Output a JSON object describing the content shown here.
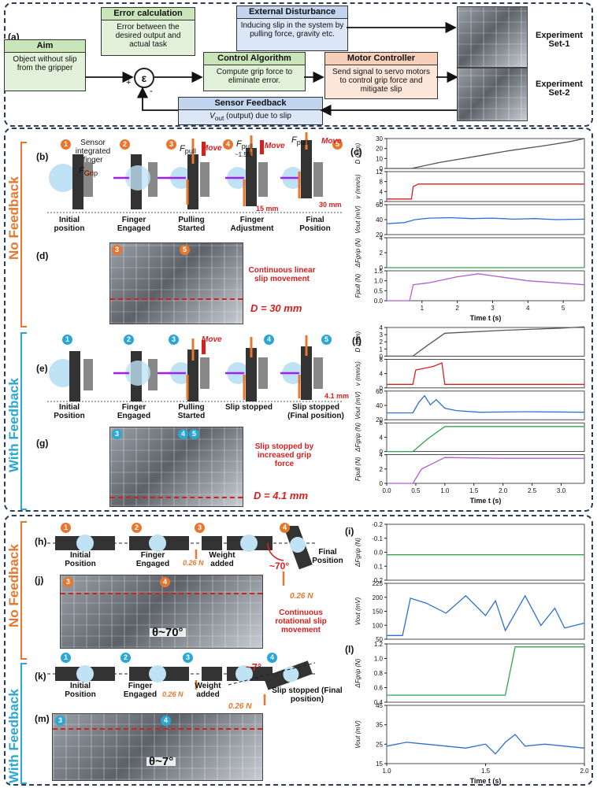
{
  "panel_labels": {
    "a": "(a)",
    "b": "(b)",
    "c": "(c)",
    "d": "(d)",
    "e": "(e)",
    "f": "(f)",
    "g": "(g)",
    "h": "(h)",
    "i": "(i)",
    "j": "(j)",
    "k": "(k)",
    "l": "(l)",
    "m": "(m)"
  },
  "block": {
    "aim_title": "Aim",
    "aim_text": "Object without slip from the gripper",
    "err_title": "Error calculation",
    "err_text": "Error between the desired output and actual task",
    "ctrl_title": "Control Algorithm",
    "ctrl_text": "Compute grip force to eliminate error.",
    "dist_title": "External Disturbance",
    "dist_text": "Inducing slip in the system by pulling force, gravity etc.",
    "motor_title": "Motor Controller",
    "motor_text": "Send signal to servo motors to control grip force and mitigate slip",
    "sensor_title": "Sensor Feedback",
    "sensor_text": "V",
    "sensor_sub": "out",
    "sensor_rest": " (output) due to slip",
    "epsilon": "ε",
    "plus": "+",
    "minus": "-",
    "exp1": "Experiment Set-1",
    "exp2": "Experiment Set-2"
  },
  "sides": {
    "no_feedback": "No Feedback",
    "with_feedback": "With Feedback"
  },
  "b": {
    "sensor_note": "Sensor integrated finger",
    "captions": [
      "Initial position",
      "Finger Engaged",
      "Pulling Started",
      "Finger Adjustment",
      "Final Position"
    ],
    "fgrip": "F",
    "fgrip_sub": "Grip",
    "fpull": "F",
    "fpull_sub": "pull",
    "fpull_note": "~1.5N",
    "move": "Move",
    "f": "f",
    "d15": "15 mm",
    "d30": "30 mm"
  },
  "d": {
    "note": "Continuous linear slip movement",
    "D": "D = 30 mm"
  },
  "e": {
    "captions": [
      "Initial Position",
      "Finger Engaged",
      "Pulling Started",
      "Slip stopped",
      "Slip stopped (Final position)"
    ],
    "d41": "4.1 mm"
  },
  "g": {
    "note": "Slip stopped by increased grip force",
    "D": "D = 4.1 mm"
  },
  "h": {
    "captions": [
      "Initial Position",
      "Finger Engaged",
      "Weight added",
      "Final Position"
    ],
    "weight": "0.26 N",
    "angle": "~70°"
  },
  "j": {
    "theta": "θ~70°",
    "note": "Continuous rotational slip movement"
  },
  "k": {
    "captions": [
      "Initial Position",
      "Finger Engaged",
      "Weight added",
      "Slip stopped (Final position)"
    ],
    "weight": "0.26 N",
    "angle": "~7°"
  },
  "m": {
    "theta": "θ~7°"
  },
  "colors": {
    "orange": "#e8772e",
    "blue": "#2aa7d6",
    "red": "#d61f1f",
    "green": "#2ea84a",
    "purple": "#b05fd8",
    "vblue": "#2d6fd2",
    "navy": "#2b3d5a"
  },
  "chart_data": [
    {
      "panel": "c",
      "type": "line",
      "xlabel": "Time t (s)",
      "xlim": [
        0,
        5.6
      ],
      "xticks": [
        "1",
        "2",
        "3",
        "4",
        "5"
      ],
      "subplots": [
        {
          "ylabel": "D (mm)",
          "ylim": [
            0,
            30
          ],
          "yticks": [
            "0",
            "10",
            "20",
            "30"
          ],
          "color": "#555555",
          "x": [
            0,
            0.7,
            1.5,
            2.5,
            3.5,
            4.5,
            5.2,
            5.6
          ],
          "y": [
            0,
            0,
            6,
            12,
            18,
            23,
            27,
            30
          ]
        },
        {
          "ylabel": "v (mm/s)",
          "ylim": [
            0,
            12
          ],
          "yticks": [
            "0",
            "4",
            "8",
            "12"
          ],
          "color": "#d61f1f",
          "x": [
            0,
            0.7,
            0.75,
            0.9,
            1.5,
            2.5,
            3.5,
            4.5,
            5.6
          ],
          "y": [
            1,
            1,
            6,
            7,
            7,
            7,
            7,
            7,
            7
          ]
        },
        {
          "ylabel": "Vout (mV)",
          "ylim": [
            0,
            60
          ],
          "yticks": [
            "20",
            "40",
            "60"
          ],
          "color": "#2d6fd2",
          "x": [
            0,
            0.5,
            0.8,
            1.2,
            1.8,
            2.4,
            3.0,
            3.6,
            4.2,
            4.8,
            5.6
          ],
          "y": [
            22,
            24,
            30,
            33,
            34,
            32,
            33,
            31,
            32,
            30,
            31
          ]
        },
        {
          "ylabel": "ΔFgrip (N)",
          "ylim": [
            0,
            4
          ],
          "yticks": [
            "0",
            "2",
            "4"
          ],
          "color": "#2ea84a",
          "x": [
            0,
            5.6
          ],
          "y": [
            0,
            0
          ]
        },
        {
          "ylabel": "Fpull (N)",
          "ylim": [
            0,
            1.5
          ],
          "yticks": [
            "0.0",
            "0.5",
            "1.0",
            "1.5"
          ],
          "color": "#b05fd8",
          "x": [
            0,
            0.65,
            0.75,
            1.2,
            2.0,
            2.6,
            3.2,
            4.0,
            4.8,
            5.6
          ],
          "y": [
            0,
            0,
            0.8,
            0.9,
            1.2,
            1.35,
            1.2,
            1.0,
            0.9,
            0.8
          ]
        }
      ]
    },
    {
      "panel": "f",
      "type": "line",
      "xlabel": "Time t (s)",
      "xlim": [
        0,
        3.4
      ],
      "xticks": [
        "0.0",
        "0.5",
        "1.0",
        "1.5",
        "2.0",
        "2.5",
        "3.0"
      ],
      "subplots": [
        {
          "ylabel": "D (mm)",
          "ylim": [
            0,
            4
          ],
          "yticks": [
            "0",
            "1",
            "2",
            "3",
            "4"
          ],
          "color": "#555555",
          "x": [
            0,
            0.45,
            0.7,
            1.0,
            2.0,
            3.0,
            3.4
          ],
          "y": [
            0,
            0,
            1.5,
            3.2,
            3.6,
            3.9,
            4.1
          ]
        },
        {
          "ylabel": "v (mm/s)",
          "ylim": [
            0,
            8
          ],
          "yticks": [
            "0",
            "4",
            "8"
          ],
          "color": "#d61f1f",
          "x": [
            0,
            0.45,
            0.5,
            0.8,
            0.95,
            1.0,
            3.4
          ],
          "y": [
            1,
            1,
            5,
            6,
            7,
            1,
            1
          ]
        },
        {
          "ylabel": "Vout (mV)",
          "ylim": [
            10,
            60
          ],
          "yticks": [
            "20",
            "40",
            "60"
          ],
          "color": "#2d6fd2",
          "x": [
            0,
            0.45,
            0.55,
            0.65,
            0.75,
            0.85,
            1.0,
            1.2,
            1.6,
            2.4,
            3.4
          ],
          "y": [
            22,
            22,
            40,
            52,
            36,
            45,
            30,
            26,
            23,
            24,
            23
          ]
        },
        {
          "ylabel": "ΔFgrip (N)",
          "ylim": [
            0,
            8
          ],
          "yticks": [
            "0",
            "4",
            "8"
          ],
          "color": "#2ea84a",
          "x": [
            0,
            0.45,
            0.7,
            1.0,
            3.4
          ],
          "y": [
            0,
            0,
            3.5,
            7,
            7
          ]
        },
        {
          "ylabel": "Fpull (N)",
          "ylim": [
            0,
            4
          ],
          "yticks": [
            "0",
            "2",
            "4"
          ],
          "color": "#b05fd8",
          "x": [
            0,
            0.45,
            0.6,
            1.0,
            2.0,
            3.4
          ],
          "y": [
            0,
            0,
            2,
            3.6,
            3.5,
            3.5
          ]
        }
      ]
    },
    {
      "panel": "i",
      "type": "line",
      "xlim": [
        1.0,
        2.0
      ],
      "subplots": [
        {
          "ylabel": "ΔFgrip (N)",
          "ylim": [
            -0.25,
            0.3
          ],
          "yticks": [
            "0.2",
            "0.1",
            "0.0",
            "-0.1",
            "-0.2"
          ],
          "color": "#2ea84a",
          "x": [
            1.0,
            2.0
          ],
          "y": [
            0,
            0
          ]
        },
        {
          "ylabel": "Vout (mV)",
          "ylim": [
            25,
            250
          ],
          "yticks": [
            "50",
            "100",
            "150",
            "200",
            "225"
          ],
          "color": "#2d6fd2",
          "x": [
            1.0,
            1.08,
            1.12,
            1.2,
            1.3,
            1.4,
            1.5,
            1.55,
            1.6,
            1.7,
            1.78,
            1.85,
            1.9,
            2.0
          ],
          "y": [
            40,
            40,
            190,
            170,
            130,
            200,
            120,
            180,
            60,
            200,
            80,
            150,
            70,
            90
          ]
        }
      ]
    },
    {
      "panel": "l",
      "type": "line",
      "xlabel": "Time t (s)",
      "xlim": [
        1.0,
        2.0
      ],
      "xticks": [
        "1.0",
        "1.5",
        "2.0"
      ],
      "subplots": [
        {
          "ylabel": "ΔFgrip (N)",
          "ylim": [
            0.2,
            1.2
          ],
          "yticks": [
            "0.4",
            "0.6",
            "0.8",
            "1.0",
            "1.2"
          ],
          "color": "#2ea84a",
          "x": [
            1.0,
            1.6,
            1.65,
            2.0
          ],
          "y": [
            0.32,
            0.32,
            1.15,
            1.15
          ]
        },
        {
          "ylabel": "Vout (mV)",
          "ylim": [
            15,
            45
          ],
          "yticks": [
            "15",
            "25",
            "35",
            "45"
          ],
          "color": "#2d6fd2",
          "x": [
            1.0,
            1.1,
            1.2,
            1.3,
            1.4,
            1.5,
            1.55,
            1.6,
            1.65,
            1.7,
            1.8,
            1.9,
            2.0
          ],
          "y": [
            24,
            26,
            25,
            24,
            23,
            25,
            20,
            26,
            30,
            24,
            25,
            24,
            23
          ]
        }
      ]
    }
  ]
}
